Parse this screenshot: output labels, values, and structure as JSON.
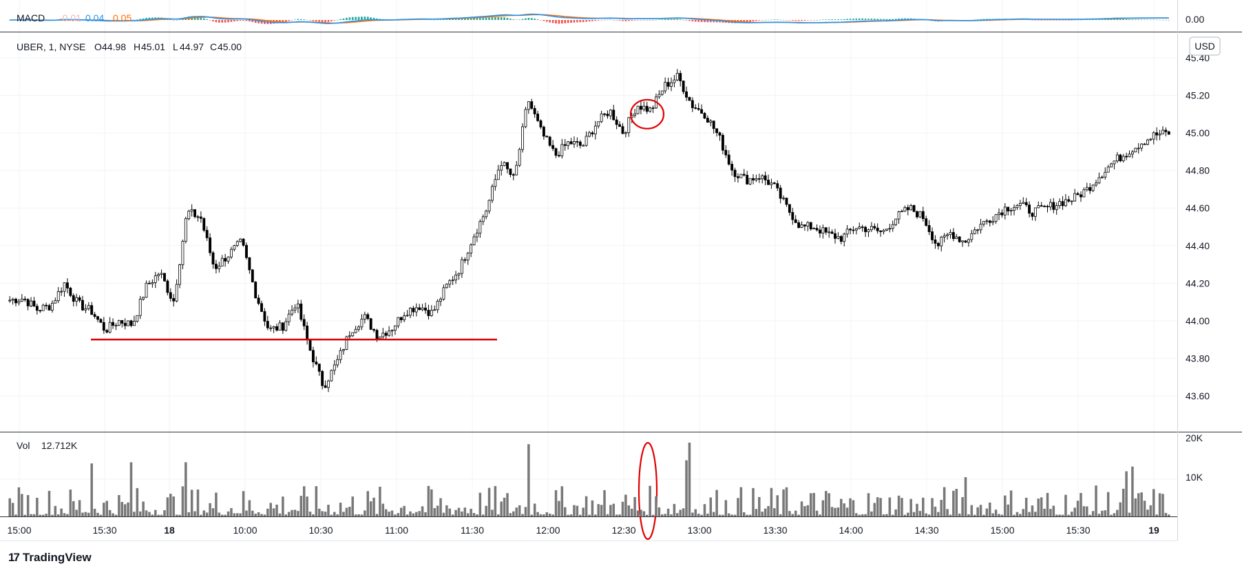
{
  "macd": {
    "label": "MACD",
    "v1": "-0.01",
    "v2": "0.04",
    "v3": "0.05",
    "axis_value": "0.00",
    "colors": {
      "macd": "#2196f3",
      "signal": "#ff6d00",
      "hist_up": "#26a69a",
      "hist_down": "#ef5350"
    }
  },
  "legend": {
    "symbol": "UBER, 1, NYSE",
    "o_label": "O",
    "o": "44.98",
    "h_label": "H",
    "h": "45.01",
    "l_label": "L",
    "l": "44.97",
    "c_label": "C",
    "c": "45.00"
  },
  "currency": "USD",
  "volume": {
    "label": "Vol",
    "value": "12.712K",
    "axis_ticks": [
      "20K",
      "10K"
    ]
  },
  "brand": {
    "name": "TradingView",
    "logo": "17"
  },
  "colors": {
    "candle": "#000000",
    "volume_bar": "#787878",
    "annotation": "#e00000",
    "grid": "#f0f3fa"
  },
  "chart_data": [
    {
      "type": "candlestick",
      "title": "UBER, 1, NYSE",
      "ylabel": "USD",
      "ylim": [
        43.5,
        45.45
      ],
      "y_ticks": [
        "45.40",
        "45.20",
        "45.00",
        "44.80",
        "44.60",
        "44.40",
        "44.20",
        "44.00",
        "43.80",
        "43.60"
      ],
      "x_ticks": [
        "15:00",
        "15:30",
        "18",
        "10:00",
        "10:30",
        "11:00",
        "11:30",
        "12:00",
        "12:30",
        "13:00",
        "13:30",
        "14:00",
        "14:30",
        "15:00",
        "15:30",
        "19"
      ],
      "close_path": [
        [
          "15:00",
          44.11
        ],
        [
          "15:05",
          44.12
        ],
        [
          "15:10",
          44.06
        ],
        [
          "15:15",
          44.08
        ],
        [
          "15:20",
          44.2
        ],
        [
          "15:25",
          44.09
        ],
        [
          "15:30",
          44.05
        ],
        [
          "15:35",
          43.95
        ],
        [
          "15:40",
          44.0
        ],
        [
          "15:45",
          43.98
        ],
        [
          "15:50",
          44.18
        ],
        [
          "15:55",
          44.26
        ],
        [
          "16:00",
          44.1
        ],
        [
          "18 09:30",
          44.58
        ],
        [
          "09:35",
          44.55
        ],
        [
          "09:40",
          44.28
        ],
        [
          "09:45",
          44.35
        ],
        [
          "09:50",
          44.42
        ],
        [
          "09:55",
          44.15
        ],
        [
          "10:00",
          43.95
        ],
        [
          "10:05",
          43.97
        ],
        [
          "10:10",
          44.1
        ],
        [
          "10:15",
          43.85
        ],
        [
          "10:20",
          43.65
        ],
        [
          "10:25",
          43.78
        ],
        [
          "10:30",
          43.95
        ],
        [
          "10:35",
          44.02
        ],
        [
          "10:40",
          43.92
        ],
        [
          "10:45",
          43.96
        ],
        [
          "10:50",
          44.05
        ],
        [
          "10:55",
          44.08
        ],
        [
          "11:00",
          44.04
        ],
        [
          "11:05",
          44.18
        ],
        [
          "11:10",
          44.28
        ],
        [
          "11:15",
          44.45
        ],
        [
          "11:20",
          44.6
        ],
        [
          "11:25",
          44.85
        ],
        [
          "11:30",
          44.75
        ],
        [
          "11:35",
          45.18
        ],
        [
          "11:40",
          45.0
        ],
        [
          "11:45",
          44.88
        ],
        [
          "11:50",
          44.95
        ],
        [
          "11:55",
          44.93
        ],
        [
          "12:00",
          45.05
        ],
        [
          "12:05",
          45.12
        ],
        [
          "12:10",
          45.0
        ],
        [
          "12:15",
          45.15
        ],
        [
          "12:20",
          45.12
        ],
        [
          "12:25",
          45.25
        ],
        [
          "12:30",
          45.3
        ],
        [
          "12:35",
          45.15
        ],
        [
          "12:40",
          45.1
        ],
        [
          "12:45",
          44.98
        ],
        [
          "12:50",
          44.8
        ],
        [
          "12:55",
          44.75
        ],
        [
          "13:00",
          44.77
        ],
        [
          "13:05",
          44.72
        ],
        [
          "13:10",
          44.6
        ],
        [
          "13:15",
          44.5
        ],
        [
          "13:20",
          44.5
        ],
        [
          "13:25",
          44.46
        ],
        [
          "13:30",
          44.44
        ],
        [
          "13:35",
          44.5
        ],
        [
          "13:40",
          44.49
        ],
        [
          "13:45",
          44.47
        ],
        [
          "13:50",
          44.55
        ],
        [
          "13:55",
          44.6
        ],
        [
          "14:00",
          44.55
        ],
        [
          "14:05",
          44.4
        ],
        [
          "14:10",
          44.47
        ],
        [
          "14:15",
          44.42
        ],
        [
          "14:20",
          44.5
        ],
        [
          "14:25",
          44.55
        ],
        [
          "14:30",
          44.6
        ],
        [
          "14:35",
          44.62
        ],
        [
          "14:40",
          44.58
        ],
        [
          "14:45",
          44.6
        ],
        [
          "14:50",
          44.63
        ],
        [
          "14:55",
          44.65
        ],
        [
          "15:00",
          44.7
        ],
        [
          "15:05",
          44.78
        ],
        [
          "15:10",
          44.85
        ],
        [
          "15:15",
          44.9
        ],
        [
          "15:20",
          44.95
        ],
        [
          "15:25",
          44.99
        ],
        [
          "15:30",
          45.0
        ]
      ],
      "annotations": [
        {
          "type": "hline",
          "y": 43.9,
          "x_from": "15:33",
          "x_to": "11:37",
          "color": "#e00000"
        },
        {
          "type": "circle",
          "x": "12:43",
          "y": 45.1,
          "color": "#e00000"
        }
      ]
    },
    {
      "type": "bar",
      "title": "Vol",
      "ylim": [
        0,
        20000
      ],
      "y_ticks": [
        "20K",
        "10K"
      ],
      "notable_bars": [
        {
          "x": "15:30",
          "value": 13500
        },
        {
          "x": "15:45",
          "value": 13800
        },
        {
          "x": "18 09:30",
          "value": 13800
        },
        {
          "x": "11:35",
          "value": 18400
        },
        {
          "x": "12:43",
          "value": 14300
        },
        {
          "x": "12:44",
          "value": 18800
        },
        {
          "x": "14:15",
          "value": 10000
        },
        {
          "x": "15:44",
          "value": 11500
        },
        {
          "x": "15:47",
          "value": 12700
        }
      ],
      "last_value": 12712,
      "annotations": [
        {
          "type": "ellipse",
          "x": "12:44",
          "color": "#e00000"
        }
      ]
    }
  ]
}
